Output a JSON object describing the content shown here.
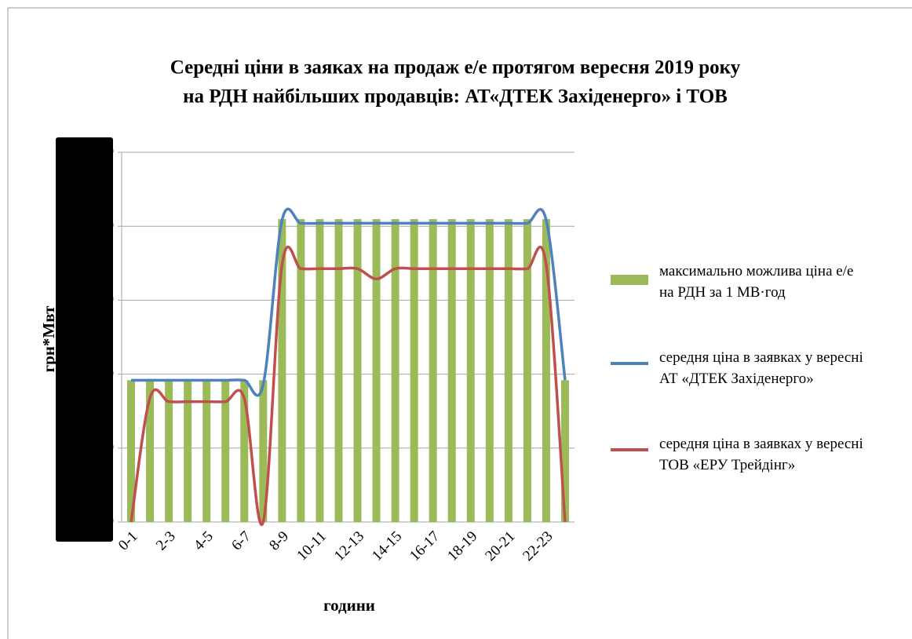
{
  "chart_data": {
    "type": "bar_line",
    "title": "Середні ціни в заяках на продаж е/е протягом вересня 2019 року",
    "subtitle": "на РДН найбільших продавців: АТ«ДТЕК Західенерго» і ТОВ",
    "y_label": "грн*Мвт",
    "x_label": "години",
    "categories": [
      "0-1",
      null,
      "2-3",
      null,
      "4-5",
      null,
      "6-7",
      null,
      "8-9",
      null,
      "10-11",
      null,
      "12-13",
      null,
      "14-15",
      null,
      "16-17",
      null,
      "18-19",
      null,
      "20-21",
      null,
      "22-23",
      null
    ],
    "series": [
      {
        "name": "максимально можлива ціна е/е на РДН за 1 МВ·год",
        "type": "bar",
        "color": "#9bbb59",
        "values": [
          959.12,
          959.12,
          959.12,
          959.12,
          959.12,
          959.12,
          959.12,
          959.12,
          2048.23,
          2048.23,
          2048.23,
          2048.23,
          2048.23,
          2048.23,
          2048.23,
          2048.23,
          2048.23,
          2048.23,
          2048.23,
          2048.23,
          2048.23,
          2048.23,
          2048.23,
          959.12
        ]
      },
      {
        "name": "середня ціна в заявках у вересні АТ «ДТЕК Західенерго»",
        "type": "line",
        "color": "#4f81bd",
        "values": [
          959,
          959,
          959,
          959,
          959,
          959,
          959,
          930,
          2040,
          2020,
          2020,
          2020,
          2020,
          2020,
          2020,
          2020,
          2020,
          2020,
          2020,
          2020,
          2020,
          2020,
          2040,
          959
        ]
      },
      {
        "name": "середня ціна в заявках у вересні ТОВ «ЕРУ Трейдінг»",
        "type": "line",
        "color": "#c0504d",
        "values": [
          0,
          840,
          814,
          814,
          814,
          814,
          835,
          0,
          1739,
          1713,
          1713,
          1713,
          1713,
          1644,
          1713,
          1713,
          1713,
          1713,
          1713,
          1713,
          1713,
          1713,
          1739,
          0
        ]
      }
    ],
    "ylim": [
      0,
      2500
    ],
    "yticks": [
      0,
      500,
      1000,
      1500,
      2000,
      2500
    ],
    "grid": true,
    "legend": "right"
  }
}
